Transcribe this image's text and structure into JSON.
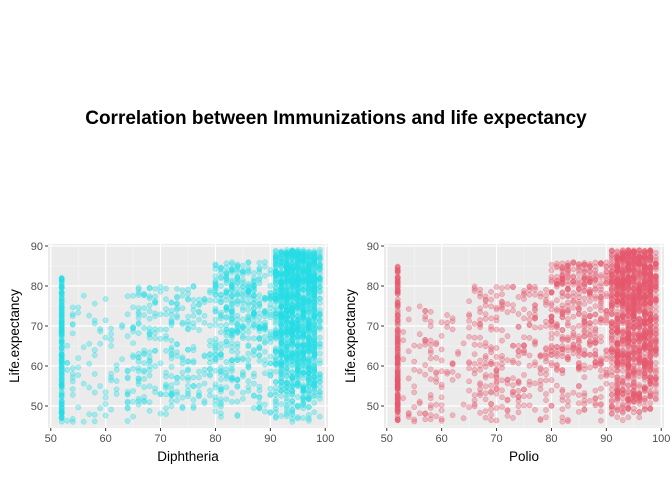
{
  "page": {
    "title": "Correlation between Immunizations and life expectancy"
  },
  "chart_data": [
    {
      "type": "scatter",
      "xlabel": "Diphtheria",
      "ylabel": "Life.expectancy",
      "xlim": [
        49.5,
        100.5
      ],
      "ylim": [
        44.5,
        90.5
      ],
      "xticks": [
        50,
        60,
        70,
        80,
        90,
        100
      ],
      "yticks": [
        50,
        60,
        70,
        80,
        90
      ],
      "grid": true,
      "panel_background": "#ebebeb",
      "point_color": "#25dde6",
      "point_alpha": 0.35,
      "clusters": [
        {
          "x": [
            52,
            52
          ],
          "y": [
            46,
            82
          ],
          "count": 170
        },
        {
          "x": [
            53,
            65
          ],
          "y": [
            46,
            78
          ],
          "count": 90
        },
        {
          "x": [
            65,
            80
          ],
          "y": [
            48,
            80
          ],
          "count": 260
        },
        {
          "x": [
            80,
            91
          ],
          "y": [
            46,
            86
          ],
          "count": 420
        },
        {
          "x": [
            91,
            99
          ],
          "y": [
            46,
            89
          ],
          "count": 1300
        }
      ]
    },
    {
      "type": "scatter",
      "xlabel": "Polio",
      "ylabel": "Life.expectancy",
      "xlim": [
        49.5,
        100.5
      ],
      "ylim": [
        44.5,
        90.5
      ],
      "xticks": [
        50,
        60,
        70,
        80,
        90,
        100
      ],
      "yticks": [
        50,
        60,
        70,
        80,
        90
      ],
      "grid": true,
      "panel_background": "#ebebeb",
      "point_color": "#e5586e",
      "point_alpha": 0.35,
      "clusters": [
        {
          "x": [
            52,
            52
          ],
          "y": [
            46,
            85
          ],
          "count": 170
        },
        {
          "x": [
            53,
            65
          ],
          "y": [
            46,
            75
          ],
          "count": 100
        },
        {
          "x": [
            65,
            80
          ],
          "y": [
            46,
            80
          ],
          "count": 260
        },
        {
          "x": [
            80,
            91
          ],
          "y": [
            46,
            86
          ],
          "count": 420
        },
        {
          "x": [
            91,
            99
          ],
          "y": [
            46,
            89
          ],
          "count": 1300
        }
      ]
    }
  ]
}
